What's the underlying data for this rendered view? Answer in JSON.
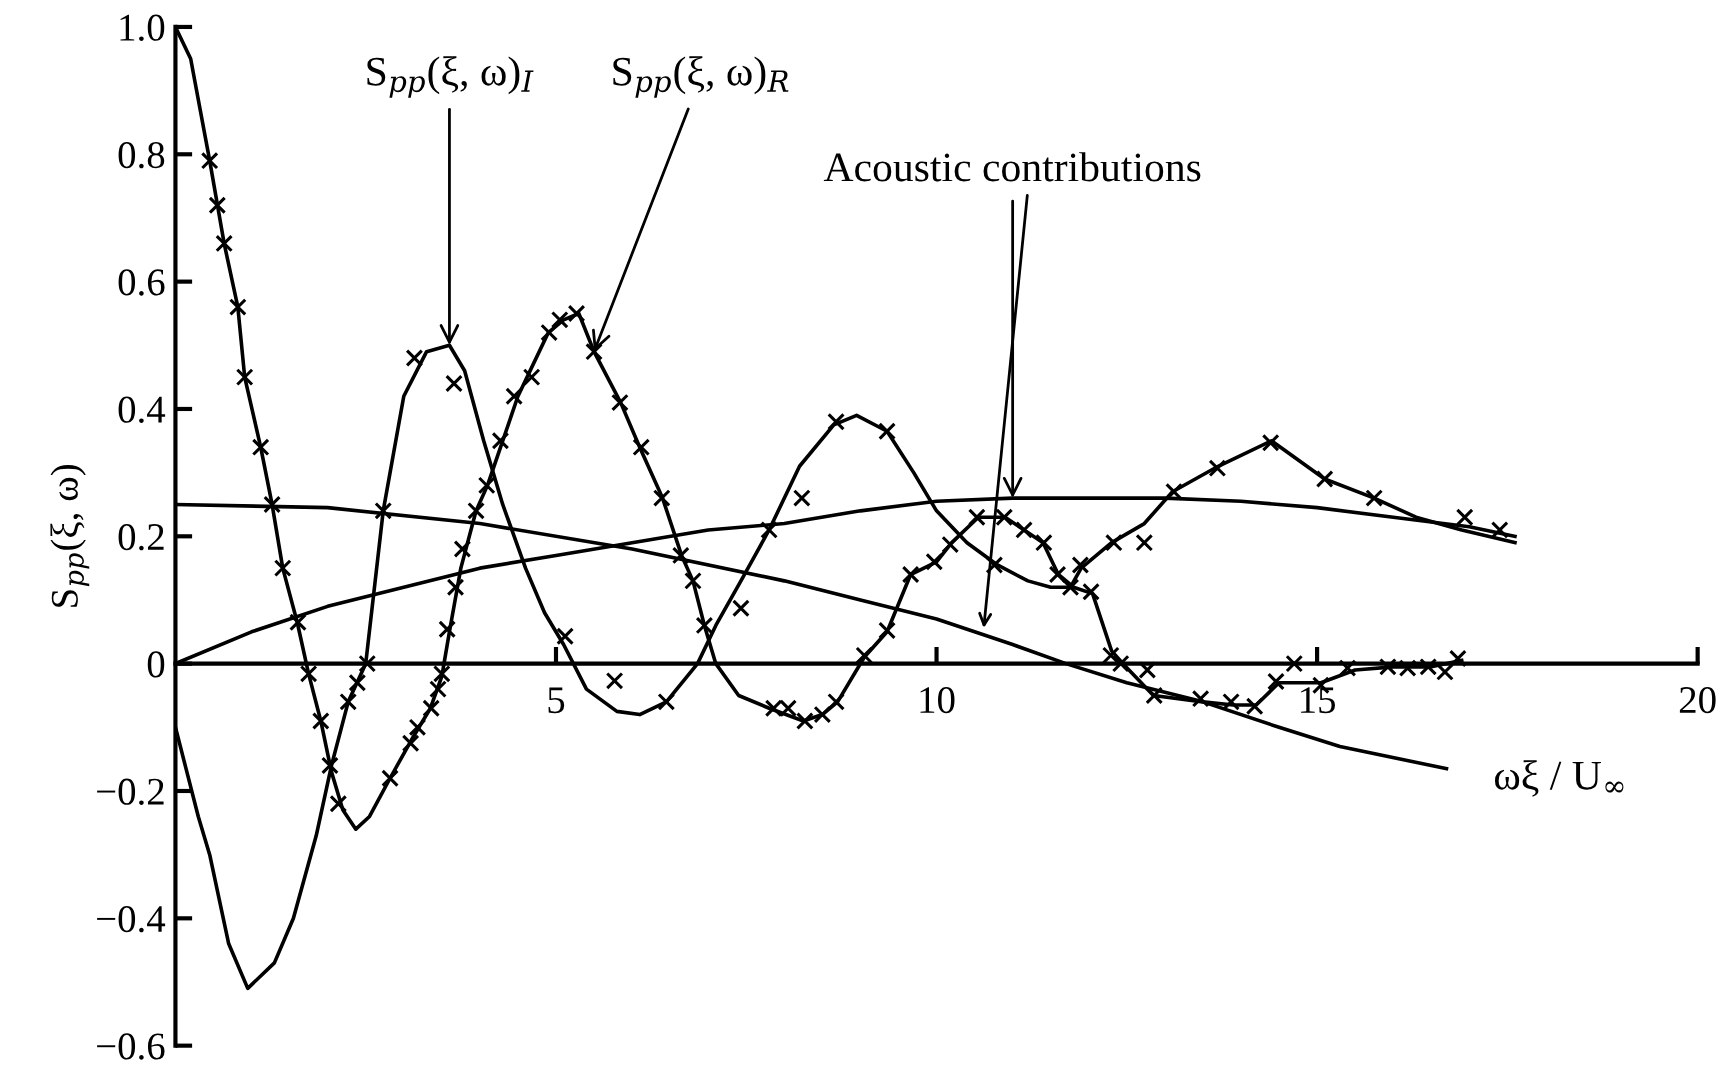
{
  "chart_data": {
    "type": "line",
    "ylabel": "S$_{pp}$(ξ, ω)",
    "xlabel": "ωξ / U$_{∞}$",
    "xlim": [
      0,
      20
    ],
    "ylim": [
      -0.6,
      1.0
    ],
    "xticks": [
      5,
      10,
      15,
      20
    ],
    "yticks": [
      {
        "value": -0.6,
        "label": "−0.6"
      },
      {
        "value": -0.4,
        "label": "−0.4"
      },
      {
        "value": -0.2,
        "label": "−0.2"
      },
      0,
      0.2,
      0.4,
      0.6,
      0.8,
      {
        "value": 1.0,
        "label": "1.0"
      }
    ],
    "grid": false,
    "legend": false,
    "annotations": [
      {
        "text": "S$_{pp}$(ξ, ω)$_{I}$",
        "x": 3.6,
        "y": 0.5
      },
      {
        "text": "S$_{pp}$(ξ, ω)$_{R}$",
        "x": 5.5,
        "y": 0.49
      },
      {
        "text": "Acoustic contributions",
        "x": 11.0,
        "y": 0.26
      }
    ],
    "series": [
      {
        "color": "#000000",
        "marker": "none",
        "line_style": "solid",
        "x": [
          0,
          0.2,
          0.45,
          0.64,
          0.82,
          0.91,
          1.12,
          1.27,
          1.41,
          1.6,
          1.75,
          1.91,
          2.05,
          2.2,
          2.37,
          2.55,
          2.82,
          3.1,
          3.35,
          3.5,
          3.6,
          3.75,
          3.95,
          4.1,
          4.3,
          4.5,
          4.7,
          4.9,
          5.1,
          5.3,
          5.5,
          5.85,
          6.1,
          6.4,
          6.65,
          6.8,
          6.95,
          7.1,
          7.4,
          7.8,
          8.25,
          8.5,
          8.7,
          9.05,
          9.35,
          9.66,
          10.0,
          10.2,
          10.55,
          10.9,
          11.15,
          11.4,
          11.6,
          11.8,
          12.05,
          12.3,
          12.45,
          12.85,
          13.5,
          13.9,
          14.2,
          14.5,
          15.05,
          15.5,
          16.0,
          16.5,
          16.9
        ],
        "values": [
          1.0,
          0.95,
          0.79,
          0.66,
          0.56,
          0.45,
          0.34,
          0.25,
          0.15,
          0.065,
          -0.016,
          -0.09,
          -0.17,
          -0.23,
          -0.26,
          -0.24,
          -0.18,
          -0.12,
          -0.07,
          -0.02,
          0.05,
          0.15,
          0.24,
          0.28,
          0.35,
          0.42,
          0.47,
          0.52,
          0.54,
          0.55,
          0.49,
          0.41,
          0.34,
          0.26,
          0.17,
          0.13,
          0.06,
          0.0,
          -0.05,
          -0.07,
          -0.09,
          -0.08,
          -0.06,
          0.01,
          0.05,
          0.14,
          0.16,
          0.19,
          0.23,
          0.23,
          0.21,
          0.19,
          0.14,
          0.12,
          0.11,
          0.02,
          0.0,
          -0.05,
          -0.06,
          -0.065,
          -0.065,
          -0.03,
          -0.03,
          -0.01,
          -0.005,
          -0.005,
          0.005
        ]
      },
      {
        "color": "#000000",
        "marker": "none",
        "line_style": "solid",
        "x": [
          0,
          0.15,
          0.3,
          0.45,
          0.7,
          0.95,
          1.3,
          1.55,
          1.85,
          2.05,
          2.27,
          2.5,
          2.73,
          3.0,
          3.3,
          3.6,
          3.8,
          4.05,
          4.3,
          4.6,
          4.85,
          5.1,
          5.4,
          5.8,
          6.1,
          6.45,
          6.86,
          7.1,
          7.43,
          7.8,
          8.2,
          8.65,
          8.95,
          9.35,
          9.7,
          10.0,
          10.4,
          10.8,
          11.2,
          11.5,
          11.76,
          11.9,
          12.3,
          12.73,
          13.1,
          13.7,
          14.4,
          15.1,
          15.75,
          16.3,
          16.9,
          17.6
        ],
        "values": [
          -0.1,
          -0.17,
          -0.24,
          -0.3,
          -0.44,
          -0.51,
          -0.47,
          -0.4,
          -0.27,
          -0.16,
          -0.06,
          0.0,
          0.24,
          0.42,
          0.49,
          0.5,
          0.46,
          0.35,
          0.25,
          0.15,
          0.08,
          0.03,
          -0.04,
          -0.075,
          -0.08,
          -0.06,
          0.0,
          0.06,
          0.13,
          0.21,
          0.31,
          0.375,
          0.39,
          0.365,
          0.3,
          0.24,
          0.19,
          0.155,
          0.13,
          0.12,
          0.12,
          0.15,
          0.19,
          0.22,
          0.27,
          0.31,
          0.35,
          0.29,
          0.26,
          0.23,
          0.21,
          0.19
        ]
      },
      {
        "color": "#000000",
        "marker": "none",
        "line_style": "solid",
        "x": [
          0,
          2,
          4,
          6,
          8,
          9,
          10,
          10.5,
          11,
          11.7,
          12.5,
          13.5,
          14.5,
          15.3,
          16.7
        ],
        "values": [
          0.25,
          0.245,
          0.22,
          0.18,
          0.13,
          0.1,
          0.07,
          0.05,
          0.03,
          0.0,
          -0.03,
          -0.06,
          -0.1,
          -0.13,
          -0.165
        ]
      },
      {
        "color": "#000000",
        "marker": "none",
        "line_style": "solid",
        "x": [
          0,
          1,
          2,
          3,
          4,
          5,
          6,
          7,
          8,
          9,
          10,
          11,
          12,
          13,
          14,
          15,
          16,
          17,
          17.6
        ],
        "values": [
          0.0,
          0.05,
          0.09,
          0.12,
          0.15,
          0.17,
          0.19,
          0.21,
          0.22,
          0.24,
          0.255,
          0.26,
          0.26,
          0.26,
          0.255,
          0.245,
          0.23,
          0.215,
          0.2
        ]
      },
      {
        "type": "scatter",
        "color": "#000000",
        "marker": "cross",
        "x": [
          0.45,
          0.55,
          0.64,
          0.82,
          0.91,
          1.12,
          1.27,
          1.41,
          1.61,
          1.75,
          1.91,
          2.03,
          2.14,
          2.27,
          2.39,
          2.52,
          2.73,
          2.82,
          3.14,
          3.09,
          3.18,
          3.36,
          3.45,
          3.5,
          3.57,
          3.66,
          3.68,
          3.77,
          3.95,
          4.09,
          4.27,
          4.45,
          4.68,
          4.91,
          5.05,
          5.27,
          5.5,
          5.12,
          5.77,
          5.84,
          6.12,
          6.39,
          6.64,
          6.8,
          6.45,
          6.95,
          7.43,
          7.8,
          8.23,
          7.86,
          8.05,
          8.27,
          8.5,
          8.68,
          8.68,
          9.35,
          9.35,
          9.05,
          9.66,
          9.97,
          10.18,
          10.53,
          10.89,
          11.15,
          10.76,
          11.41,
          11.59,
          11.76,
          11.89,
          12.03,
          12.29,
          12.42,
          12.77,
          12.86,
          12.33,
          12.73,
          13.12,
          13.47,
          13.69,
          13.87,
          14.18,
          14.39,
          14.46,
          14.7,
          15.05,
          15.1,
          15.4,
          15.75,
          15.93,
          16.19,
          16.46,
          16.68,
          16.85,
          16.94,
          17.4
        ],
        "values": [
          0.79,
          0.72,
          0.66,
          0.56,
          0.45,
          0.34,
          0.25,
          0.15,
          0.065,
          -0.016,
          -0.09,
          -0.16,
          -0.22,
          -0.06,
          -0.03,
          0.0,
          0.24,
          -0.18,
          0.48,
          -0.125,
          -0.1,
          -0.07,
          -0.04,
          -0.016,
          0.054,
          0.44,
          0.12,
          0.18,
          0.24,
          0.28,
          0.35,
          0.42,
          0.45,
          0.52,
          0.54,
          0.55,
          0.49,
          0.043,
          -0.027,
          0.41,
          0.34,
          0.26,
          0.17,
          0.13,
          -0.06,
          0.06,
          0.087,
          0.21,
          0.26,
          -0.07,
          -0.07,
          -0.09,
          -0.08,
          -0.06,
          0.38,
          0.365,
          0.052,
          0.013,
          0.14,
          0.16,
          0.187,
          0.23,
          0.23,
          0.21,
          0.155,
          0.19,
          0.14,
          0.12,
          0.155,
          0.113,
          0.013,
          0.0,
          -0.01,
          -0.05,
          0.19,
          0.19,
          0.27,
          -0.055,
          0.307,
          -0.06,
          -0.067,
          0.347,
          -0.028,
          0.0,
          -0.034,
          0.29,
          -0.007,
          0.26,
          -0.005,
          -0.007,
          -0.005,
          -0.013,
          0.008,
          0.23,
          0.21
        ]
      }
    ]
  }
}
